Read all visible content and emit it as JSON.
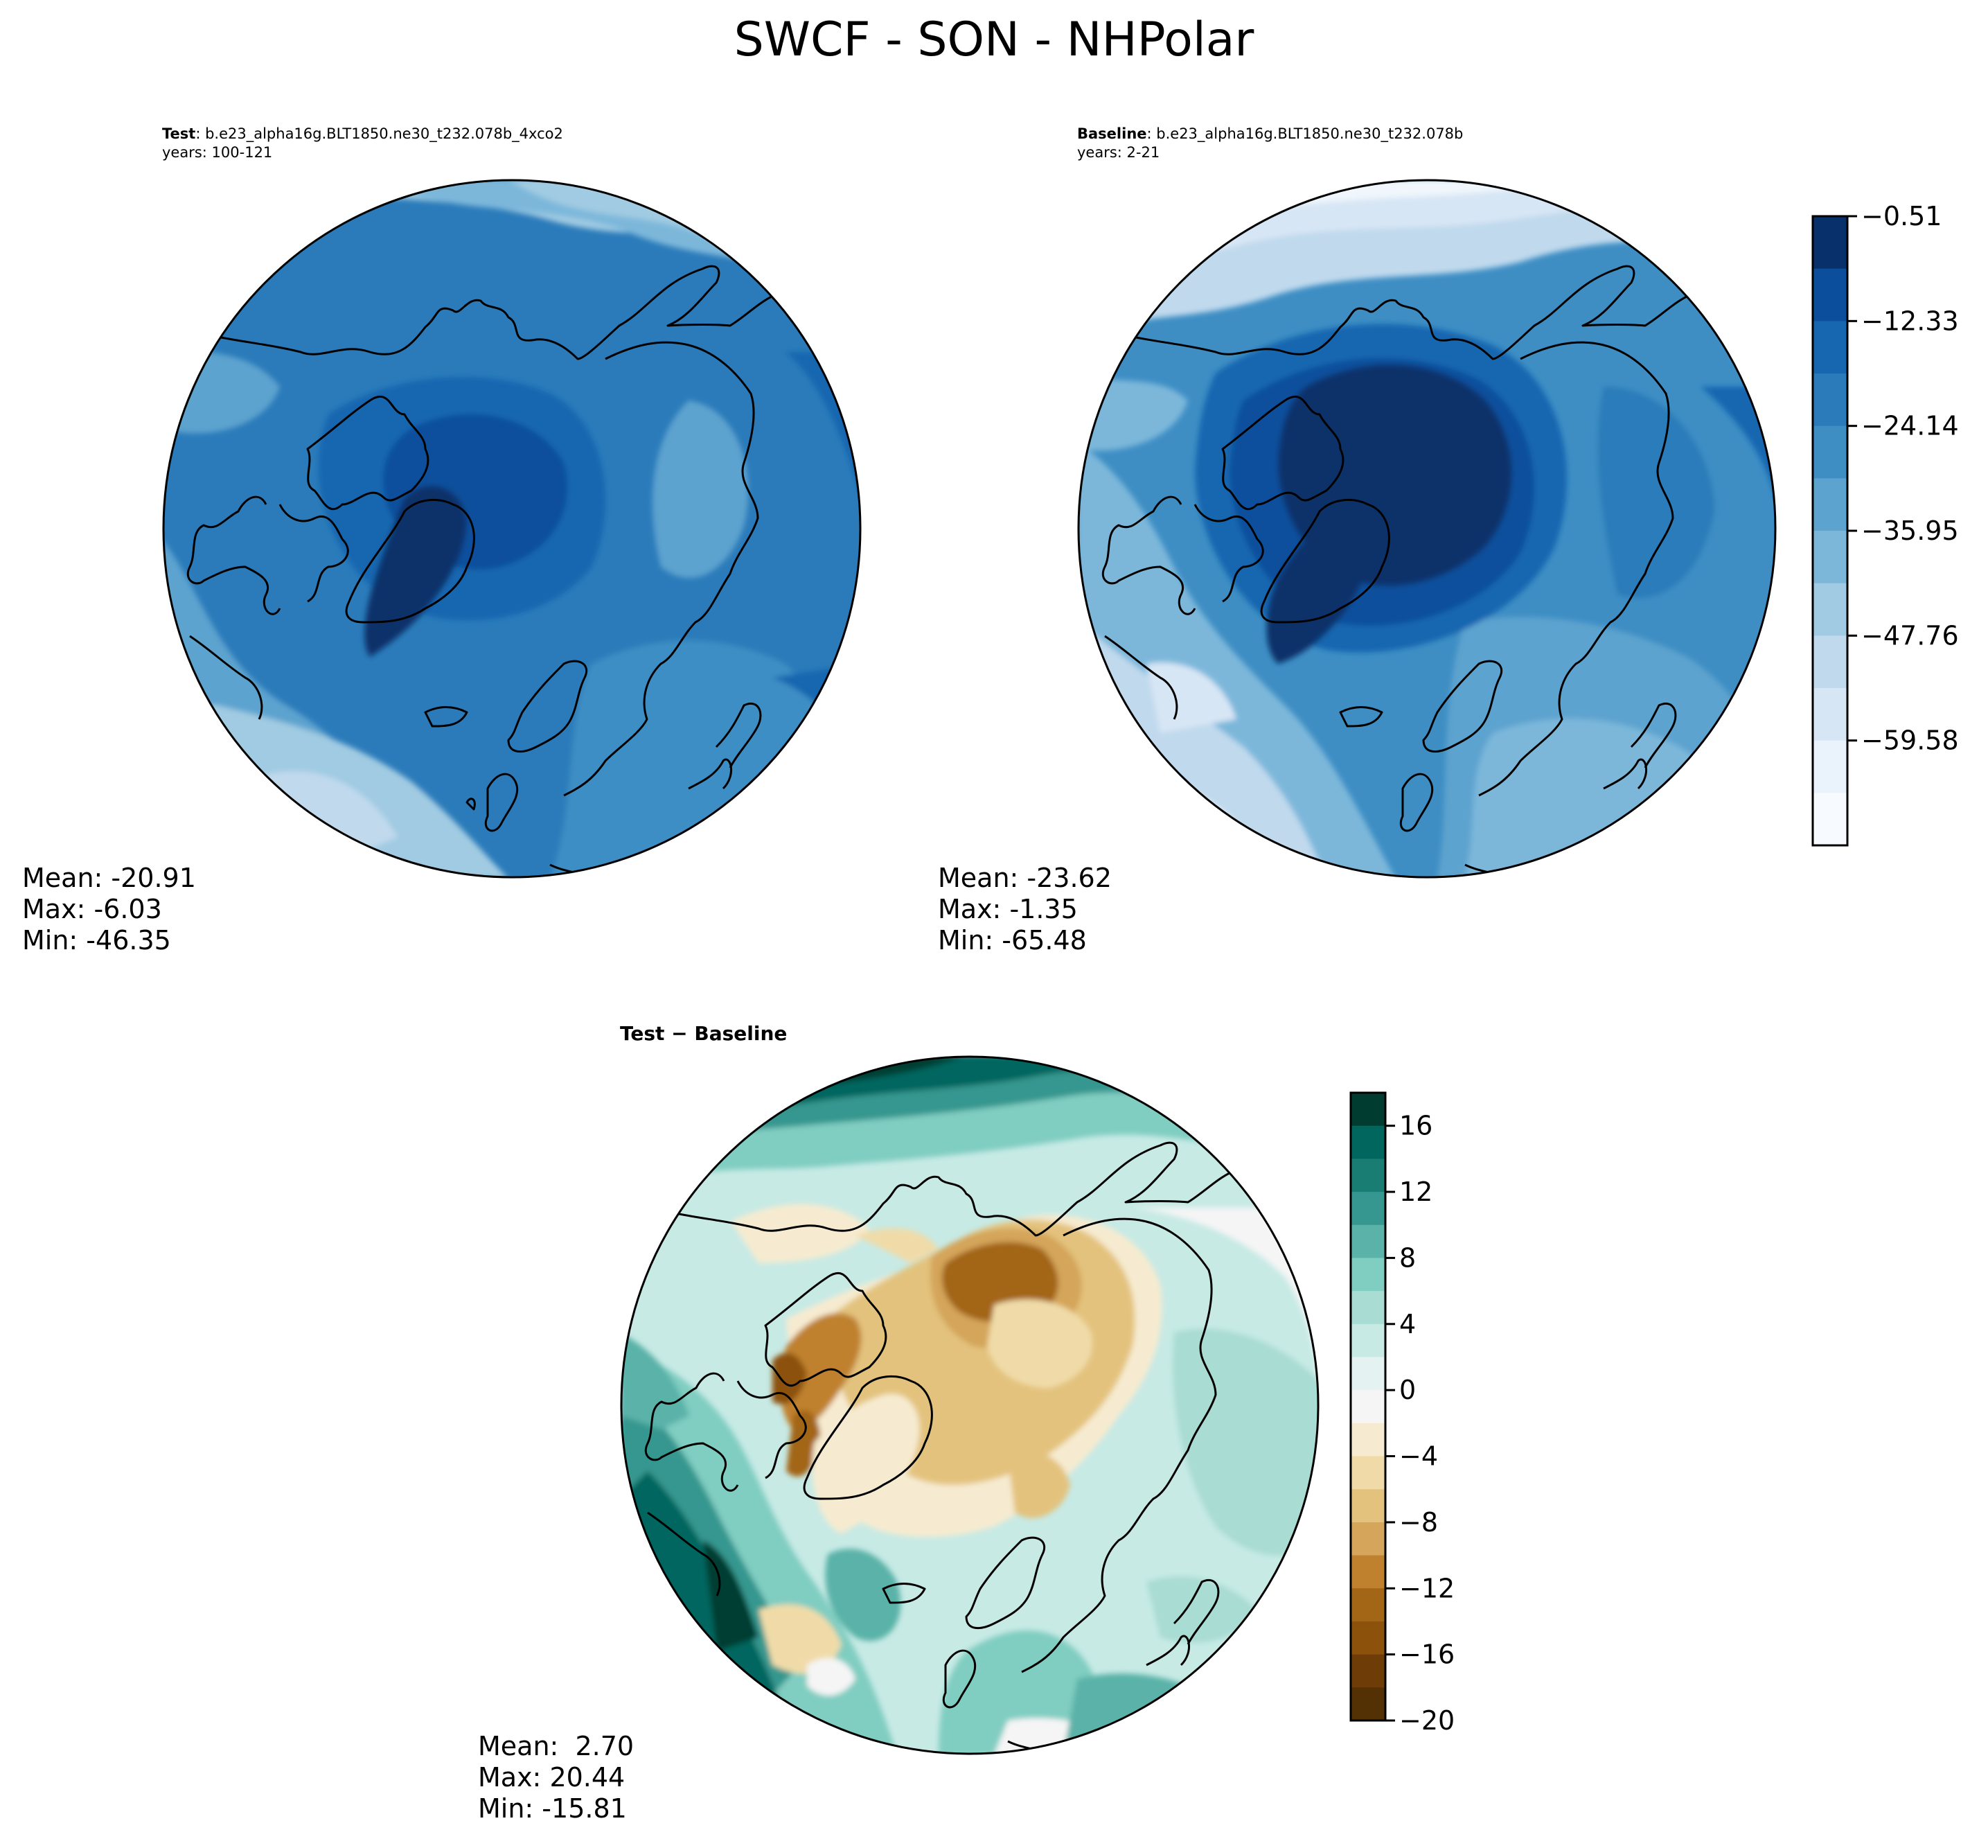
{
  "title": "SWCF - SON - NHPolar",
  "panels": [
    {
      "name": "test",
      "title_bold": "Test",
      "title_rest": ": b.e23_alpha16g.BLT1850.ne30_t232.078b_4xco2",
      "subtitle": "years: 100-121",
      "stats": {
        "mean": "Mean: -20.91",
        "max": "Max: -6.03",
        "min": "Min: -46.35"
      }
    },
    {
      "name": "baseline",
      "title_bold": "Baseline",
      "title_rest": ": b.e23_alpha16g.BLT1850.ne30_t232.078b",
      "subtitle": "years: 2-21",
      "stats": {
        "mean": "Mean: -23.62",
        "max": "Max: -1.35",
        "min": "Min: -65.48"
      }
    },
    {
      "name": "difference",
      "title_bold": "Test − Baseline",
      "stats": {
        "mean": "Mean:  2.70",
        "max": "Max: 20.44",
        "min": "Min: -15.81"
      }
    }
  ],
  "colorbars": {
    "blues": {
      "ticks": [
        "−0.51",
        "−12.33",
        "−24.14",
        "−35.95",
        "−47.76",
        "−59.58"
      ],
      "levels": 13,
      "colors_dark_to_light": [
        "#08306b",
        "#0b4f9c",
        "#1766b0",
        "#2b7bba",
        "#3e8ec4",
        "#5da3cf",
        "#7cb7da",
        "#a0cbe2",
        "#c0d9ed",
        "#d7e6f5",
        "#eaf2fb",
        "#f7fbff"
      ]
    },
    "brbg": {
      "ticks": [
        "16",
        "12",
        "8",
        "4",
        "0",
        "−4",
        "−8",
        "−12",
        "−16",
        "−20"
      ],
      "range": [
        -20,
        18
      ],
      "colors_top_to_bottom": [
        "#003c30",
        "#01665e",
        "#1a7d74",
        "#35978f",
        "#5ab2a8",
        "#80cdc1",
        "#a9dcd3",
        "#c7eae5",
        "#e4f3f1",
        "#f5f5f5",
        "#f6ebd0",
        "#f0dba8",
        "#e3c27d",
        "#d4a55a",
        "#bf812d",
        "#a36516",
        "#8c510a",
        "#6e3d07",
        "#543005"
      ]
    }
  }
}
